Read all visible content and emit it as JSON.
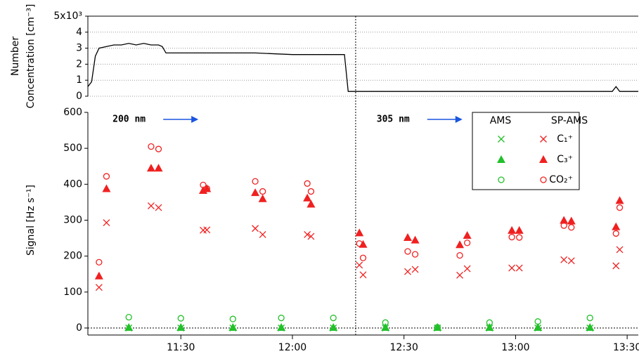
{
  "chart_data": [
    {
      "type": "line",
      "y_label_lines": [
        "Number",
        "Concentration [cm⁻³]"
      ],
      "xlim": [
        "11:05",
        "13:33"
      ],
      "ylim": [
        0,
        5
      ],
      "yticks": [
        0,
        1,
        2,
        3,
        4,
        {
          "value": 5,
          "label": "5x10³"
        }
      ],
      "grid": true,
      "x": [
        "11:05",
        "11:06",
        "11:07",
        "11:08",
        "11:10",
        "11:12",
        "11:14",
        "11:16",
        "11:18",
        "11:20",
        "11:22",
        "11:24",
        "11:25",
        "11:26",
        "11:30",
        "11:40",
        "11:50",
        "12:00",
        "12:10",
        "12:14",
        "12:15",
        "12:30",
        "13:00",
        "13:26",
        "13:27",
        "13:28",
        "13:33"
      ],
      "series": [
        {
          "color": "#000000",
          "values": [
            0.6,
            0.9,
            2.5,
            3.0,
            3.1,
            3.2,
            3.2,
            3.3,
            3.2,
            3.3,
            3.2,
            3.2,
            3.1,
            2.7,
            2.7,
            2.7,
            2.7,
            2.6,
            2.6,
            2.6,
            0.3,
            0.3,
            0.3,
            0.3,
            0.6,
            0.3,
            0.3
          ]
        }
      ]
    },
    {
      "type": "scatter",
      "y_label": "Signal [Hz s⁻¹]",
      "xlim": [
        "11:05",
        "13:33"
      ],
      "xticks": [
        "11:30",
        "12:00",
        "12:30",
        "13:00",
        "13:30"
      ],
      "ylim": [
        0,
        600
      ],
      "yticks": [
        0,
        100,
        200,
        300,
        400,
        500,
        600
      ],
      "vline": "12:17",
      "annotations": [
        {
          "text": "200 nm",
          "x": "11:09"
        },
        {
          "text": "305 nm",
          "x": "12:20"
        }
      ],
      "legend": {
        "columns": [
          "AMS",
          "SP-AMS"
        ],
        "rows": [
          "C₁⁺",
          "C₃⁺",
          "CO₂⁺"
        ]
      },
      "series": [
        {
          "column": 1,
          "row": 0,
          "marker": "x",
          "color": "#f02020",
          "x": [
            "11:08",
            "11:10",
            "11:22",
            "11:24",
            "11:36",
            "11:37",
            "11:50",
            "11:52",
            "12:04",
            "12:05",
            "12:18",
            "12:19",
            "12:31",
            "12:33",
            "12:45",
            "12:47",
            "12:59",
            "13:01",
            "13:13",
            "13:15",
            "13:27",
            "13:28"
          ],
          "values": [
            113,
            293,
            340,
            335,
            272,
            273,
            277,
            260,
            260,
            255,
            175,
            148,
            157,
            163,
            147,
            165,
            167,
            167,
            190,
            187,
            173,
            218
          ]
        },
        {
          "column": 1,
          "row": 1,
          "marker": "triangle",
          "color": "#f02020",
          "x": [
            "11:08",
            "11:10",
            "11:22",
            "11:24",
            "11:36",
            "11:37",
            "11:50",
            "11:52",
            "12:04",
            "12:05",
            "12:18",
            "12:19",
            "12:31",
            "12:33",
            "12:45",
            "12:47",
            "12:59",
            "13:01",
            "13:13",
            "13:15",
            "13:27",
            "13:28"
          ],
          "values": [
            145,
            388,
            445,
            445,
            383,
            388,
            377,
            360,
            362,
            345,
            265,
            233,
            252,
            245,
            232,
            258,
            272,
            272,
            300,
            298,
            282,
            355
          ]
        },
        {
          "column": 1,
          "row": 2,
          "marker": "circle",
          "color": "#f02020",
          "x": [
            "11:08",
            "11:10",
            "11:22",
            "11:24",
            "11:36",
            "11:37",
            "11:50",
            "11:52",
            "12:04",
            "12:05",
            "12:18",
            "12:19",
            "12:31",
            "12:33",
            "12:45",
            "12:47",
            "12:59",
            "13:01",
            "13:13",
            "13:15",
            "13:27",
            "13:28"
          ],
          "values": [
            183,
            422,
            505,
            498,
            398,
            388,
            408,
            380,
            402,
            380,
            235,
            195,
            213,
            205,
            202,
            237,
            253,
            252,
            285,
            280,
            263,
            335
          ]
        },
        {
          "column": 0,
          "row": 0,
          "marker": "x",
          "color": "#22c02a",
          "x": [
            "11:16",
            "11:30",
            "11:44",
            "11:57",
            "12:11",
            "12:25",
            "12:39",
            "12:53",
            "13:06",
            "13:20"
          ],
          "values": [
            0,
            0,
            0,
            0,
            0,
            0,
            0,
            0,
            0,
            0
          ]
        },
        {
          "column": 0,
          "row": 1,
          "marker": "triangle",
          "color": "#22c02a",
          "x": [
            "11:16",
            "11:30",
            "11:44",
            "11:57",
            "12:11",
            "12:25",
            "12:39",
            "12:53",
            "13:06",
            "13:20"
          ],
          "values": [
            2,
            2,
            2,
            2,
            2,
            2,
            2,
            2,
            2,
            2
          ]
        },
        {
          "column": 0,
          "row": 2,
          "marker": "circle",
          "color": "#22c02a",
          "x": [
            "11:16",
            "11:30",
            "11:44",
            "11:57",
            "12:11",
            "12:25",
            "12:39",
            "12:53",
            "13:06",
            "13:20"
          ],
          "values": [
            30,
            27,
            25,
            28,
            28,
            15,
            2,
            15,
            18,
            28
          ]
        }
      ]
    }
  ]
}
